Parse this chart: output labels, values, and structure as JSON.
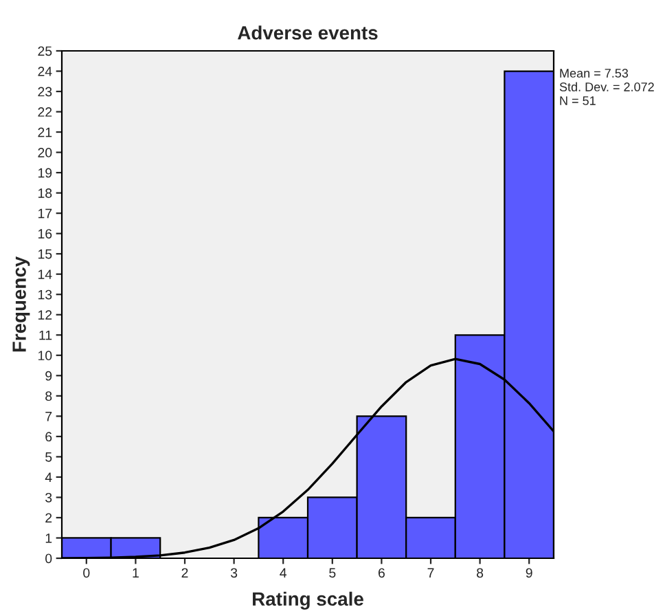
{
  "chart_data": {
    "type": "histogram",
    "title": "Adverse events",
    "xlabel": "Rating scale",
    "ylabel": "Frequency",
    "bins": [
      -0.5,
      0.5,
      1.5,
      2.5,
      3.5,
      4.5,
      5.5,
      6.5,
      7.5,
      8.5,
      9.5
    ],
    "values": [
      1,
      1,
      0,
      0,
      2,
      3,
      7,
      2,
      11,
      24
    ],
    "color": "#5a5aff",
    "series": [
      {
        "type": "line",
        "color": "#000000",
        "x": [
          -0.5,
          0,
          0.5,
          1,
          1.5,
          2,
          2.5,
          3,
          3.5,
          4,
          4.5,
          5,
          5.5,
          6,
          6.5,
          7,
          7.5,
          8,
          8.5,
          9,
          9.5
        ],
        "values": [
          0.0,
          0.01,
          0.03,
          0.07,
          0.14,
          0.28,
          0.52,
          0.9,
          1.48,
          2.3,
          3.37,
          4.66,
          6.08,
          7.48,
          8.68,
          9.5,
          9.82,
          9.57,
          8.8,
          7.64,
          6.25
        ]
      }
    ],
    "xlim": [
      -0.5,
      9.5
    ],
    "xticks": [
      0,
      1,
      2,
      3,
      4,
      5,
      6,
      7,
      8,
      9
    ],
    "ylim": [
      0,
      25
    ],
    "yticks": [
      0,
      1,
      2,
      3,
      4,
      5,
      6,
      7,
      8,
      9,
      10,
      11,
      12,
      13,
      14,
      15,
      16,
      17,
      18,
      19,
      20,
      21,
      22,
      23,
      24,
      25
    ],
    "annotations": [
      "Mean = 7.53",
      "Std. Dev. = 2.072",
      "N = 51"
    ],
    "grid": false,
    "legend": false
  }
}
